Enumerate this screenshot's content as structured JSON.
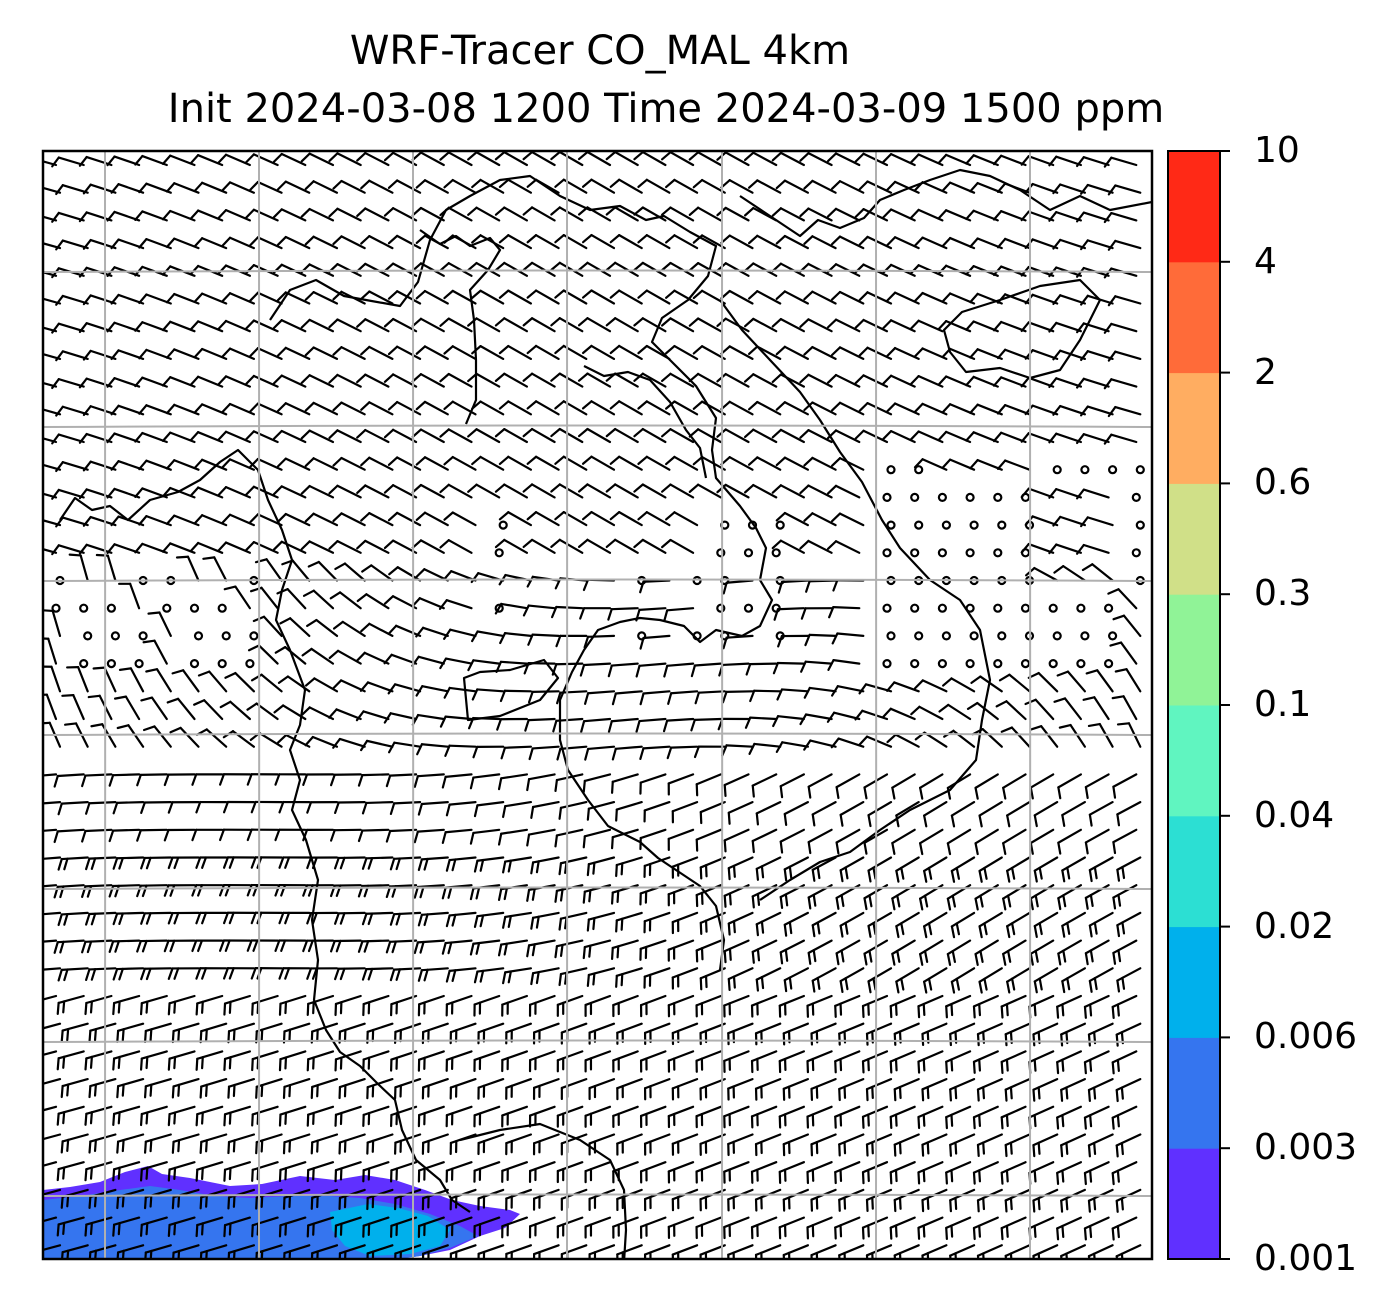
{
  "title": {
    "line1": "WRF-Tracer CO_MAL 4km",
    "line2": "Init 2024-03-08 1200 Time 2024-03-09 1500 ppm"
  },
  "colorbar": {
    "ticks": [
      "0.001",
      "0.003",
      "0.006",
      "0.02",
      "0.04",
      "0.1",
      "0.3",
      "0.6",
      "2",
      "4",
      "10"
    ],
    "colors": [
      "#6030ff",
      "#3575ef",
      "#00b0ec",
      "#2cdfd3",
      "#60f5c0",
      "#90f397",
      "#d0e088",
      "#ffad61",
      "#ff6b39",
      "#ff2916"
    ]
  },
  "map": {
    "grid_lines": "on",
    "coastlines": "on",
    "wind_barbs": "on",
    "tracer_plume_location": "bottom-left",
    "colors": {
      "grid": "#b0b0b0",
      "coast": "#000000",
      "barb": "#000000",
      "background": "#ffffff"
    }
  }
}
